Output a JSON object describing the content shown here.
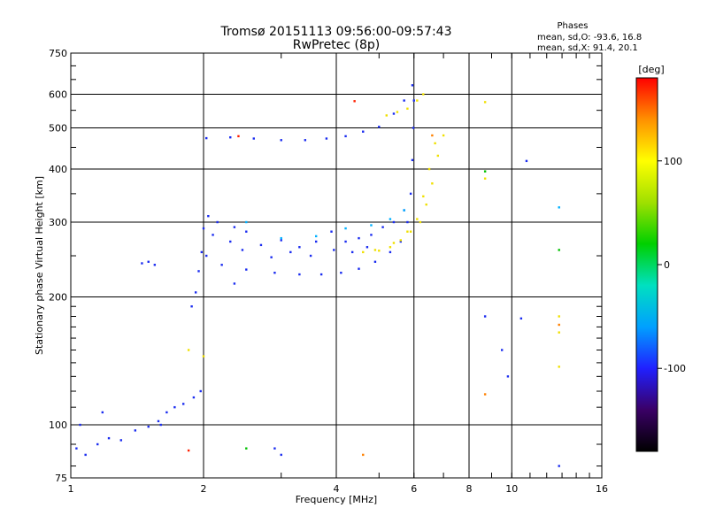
{
  "chart_data": {
    "type": "scatter",
    "title": "Tromsø 20151113 09:56:00-09:57:43",
    "subtitle": "RwPretec (8p)",
    "xlabel": "Frequency [MHz]",
    "ylabel": "Stationary phase Virtual Height [km]",
    "x_scale": "log",
    "y_scale": "log",
    "xlim": [
      1,
      16
    ],
    "ylim": [
      75,
      750
    ],
    "x_ticks": [
      1,
      2,
      4,
      6,
      8,
      10,
      16
    ],
    "y_ticks": [
      75,
      100,
      200,
      300,
      400,
      500,
      600,
      750
    ],
    "grid": true,
    "phase_header": {
      "title": "Phases",
      "line1": "mean, sd,O:  -93.6, 16.8",
      "line2": "mean, sd,X:   91.4, 20.1"
    },
    "colorbar": {
      "label": "[deg]",
      "range": [
        -180,
        180
      ],
      "ticks": [
        100,
        0,
        -100
      ],
      "colors": [
        "#000000",
        "#3a0066",
        "#2020ff",
        "#00a0ff",
        "#00e0c0",
        "#00d000",
        "#a0e000",
        "#ffff00",
        "#ff9000",
        "#ff0000"
      ]
    },
    "series": [
      {
        "color": "#1a2cf0",
        "points": [
          [
            2.03,
            473
          ],
          [
            2.3,
            475
          ],
          [
            2.6,
            472
          ],
          [
            3.0,
            468
          ],
          [
            3.4,
            468
          ],
          [
            3.8,
            472
          ],
          [
            4.2,
            478
          ],
          [
            4.6,
            490
          ],
          [
            5.0,
            503
          ],
          [
            5.4,
            540
          ],
          [
            5.7,
            580
          ],
          [
            5.95,
            630
          ],
          [
            1.03,
            88
          ],
          [
            1.08,
            85
          ],
          [
            1.15,
            90
          ],
          [
            1.22,
            93
          ],
          [
            1.3,
            92
          ],
          [
            1.4,
            97
          ],
          [
            1.5,
            99
          ],
          [
            1.58,
            102
          ],
          [
            1.65,
            107
          ],
          [
            1.72,
            110
          ],
          [
            1.8,
            112
          ],
          [
            1.9,
            116
          ],
          [
            1.97,
            120
          ],
          [
            1.05,
            100
          ],
          [
            1.18,
            107
          ],
          [
            1.6,
            100
          ],
          [
            1.45,
            240
          ],
          [
            1.55,
            238
          ],
          [
            1.5,
            242
          ],
          [
            1.88,
            190
          ],
          [
            1.92,
            205
          ],
          [
            1.95,
            230
          ],
          [
            1.98,
            255
          ],
          [
            2.0,
            290
          ],
          [
            2.05,
            310
          ],
          [
            2.03,
            250
          ],
          [
            2.2,
            238
          ],
          [
            2.5,
            232
          ],
          [
            2.9,
            228
          ],
          [
            3.3,
            226
          ],
          [
            3.7,
            226
          ],
          [
            4.1,
            228
          ],
          [
            4.5,
            233
          ],
          [
            4.9,
            242
          ],
          [
            5.3,
            255
          ],
          [
            5.6,
            270
          ],
          [
            5.8,
            300
          ],
          [
            5.9,
            350
          ],
          [
            5.95,
            420
          ],
          [
            5.98,
            500
          ],
          [
            6.0,
            580
          ],
          [
            2.1,
            280
          ],
          [
            2.3,
            270
          ],
          [
            2.5,
            285
          ],
          [
            2.7,
            265
          ],
          [
            3.0,
            272
          ],
          [
            3.3,
            262
          ],
          [
            3.6,
            270
          ],
          [
            3.9,
            285
          ],
          [
            4.2,
            270
          ],
          [
            4.5,
            275
          ],
          [
            4.8,
            280
          ],
          [
            5.1,
            292
          ],
          [
            5.4,
            300
          ],
          [
            5.7,
            320
          ],
          [
            2.15,
            300
          ],
          [
            2.35,
            292
          ],
          [
            2.45,
            258
          ],
          [
            2.85,
            248
          ],
          [
            3.15,
            255
          ],
          [
            3.5,
            250
          ],
          [
            3.95,
            258
          ],
          [
            4.35,
            255
          ],
          [
            4.7,
            262
          ],
          [
            2.35,
            215
          ],
          [
            2.9,
            88
          ],
          [
            3.0,
            85
          ],
          [
            8.7,
            180
          ],
          [
            9.5,
            150
          ],
          [
            9.8,
            130
          ],
          [
            10.5,
            178
          ],
          [
            10.8,
            418
          ],
          [
            12.8,
            80
          ]
        ]
      },
      {
        "color": "#00b0ff",
        "points": [
          [
            2.5,
            300
          ],
          [
            3.0,
            275
          ],
          [
            3.6,
            278
          ],
          [
            4.2,
            290
          ],
          [
            4.8,
            295
          ],
          [
            5.3,
            305
          ],
          [
            5.7,
            320
          ],
          [
            12.8,
            325
          ]
        ]
      },
      {
        "color": "#00c000",
        "points": [
          [
            2.5,
            88
          ],
          [
            12.8,
            258
          ],
          [
            8.7,
            395
          ]
        ]
      },
      {
        "color": "#f0e000",
        "points": [
          [
            4.6,
            255
          ],
          [
            5.0,
            257
          ],
          [
            5.3,
            262
          ],
          [
            5.6,
            272
          ],
          [
            5.9,
            285
          ],
          [
            6.2,
            300
          ],
          [
            6.4,
            330
          ],
          [
            6.6,
            370
          ],
          [
            6.8,
            430
          ],
          [
            7.0,
            480
          ],
          [
            4.9,
            258
          ],
          [
            5.4,
            268
          ],
          [
            5.8,
            285
          ],
          [
            6.1,
            305
          ],
          [
            6.3,
            345
          ],
          [
            6.5,
            400
          ],
          [
            6.7,
            460
          ],
          [
            5.2,
            535
          ],
          [
            5.5,
            545
          ],
          [
            5.8,
            555
          ],
          [
            6.1,
            580
          ],
          [
            6.3,
            600
          ],
          [
            8.7,
            575
          ],
          [
            8.7,
            380
          ],
          [
            12.8,
            180
          ],
          [
            12.8,
            165
          ],
          [
            12.8,
            137
          ],
          [
            1.85,
            150
          ],
          [
            2.0,
            145
          ]
        ]
      },
      {
        "color": "#ff8000",
        "points": [
          [
            4.6,
            85
          ],
          [
            12.8,
            172
          ],
          [
            8.7,
            118
          ],
          [
            6.6,
            480
          ]
        ]
      },
      {
        "color": "#ff2000",
        "points": [
          [
            2.4,
            478
          ],
          [
            4.4,
            578
          ],
          [
            1.85,
            87
          ]
        ]
      }
    ]
  }
}
